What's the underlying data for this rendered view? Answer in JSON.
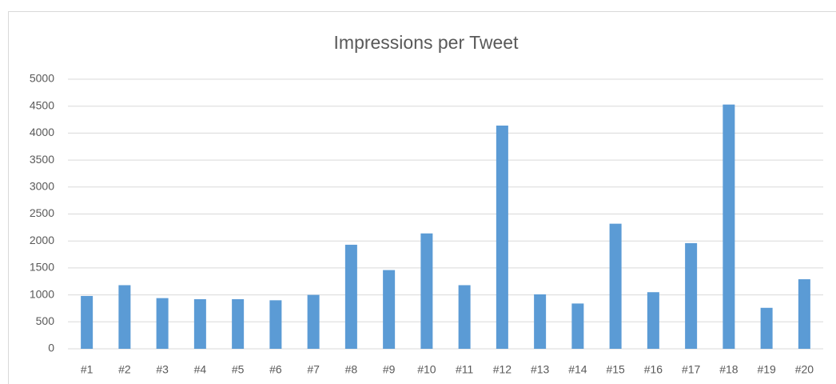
{
  "chart_data": {
    "type": "bar",
    "title": "Impressions per Tweet",
    "categories": [
      "#1",
      "#2",
      "#3",
      "#4",
      "#5",
      "#6",
      "#7",
      "#8",
      "#9",
      "#10",
      "#11",
      "#12",
      "#13",
      "#14",
      "#15",
      "#16",
      "#17",
      "#18",
      "#19",
      "#20"
    ],
    "values": [
      980,
      1180,
      940,
      920,
      920,
      900,
      1000,
      1930,
      1460,
      2140,
      1180,
      4140,
      1010,
      840,
      2320,
      1050,
      1960,
      4530,
      760,
      1290
    ],
    "color": "#5b9bd5",
    "ylim": [
      0,
      5000
    ],
    "yticks": [
      0,
      500,
      1000,
      1500,
      2000,
      2500,
      3000,
      3500,
      4000,
      4500,
      5000
    ],
    "grid": true
  }
}
